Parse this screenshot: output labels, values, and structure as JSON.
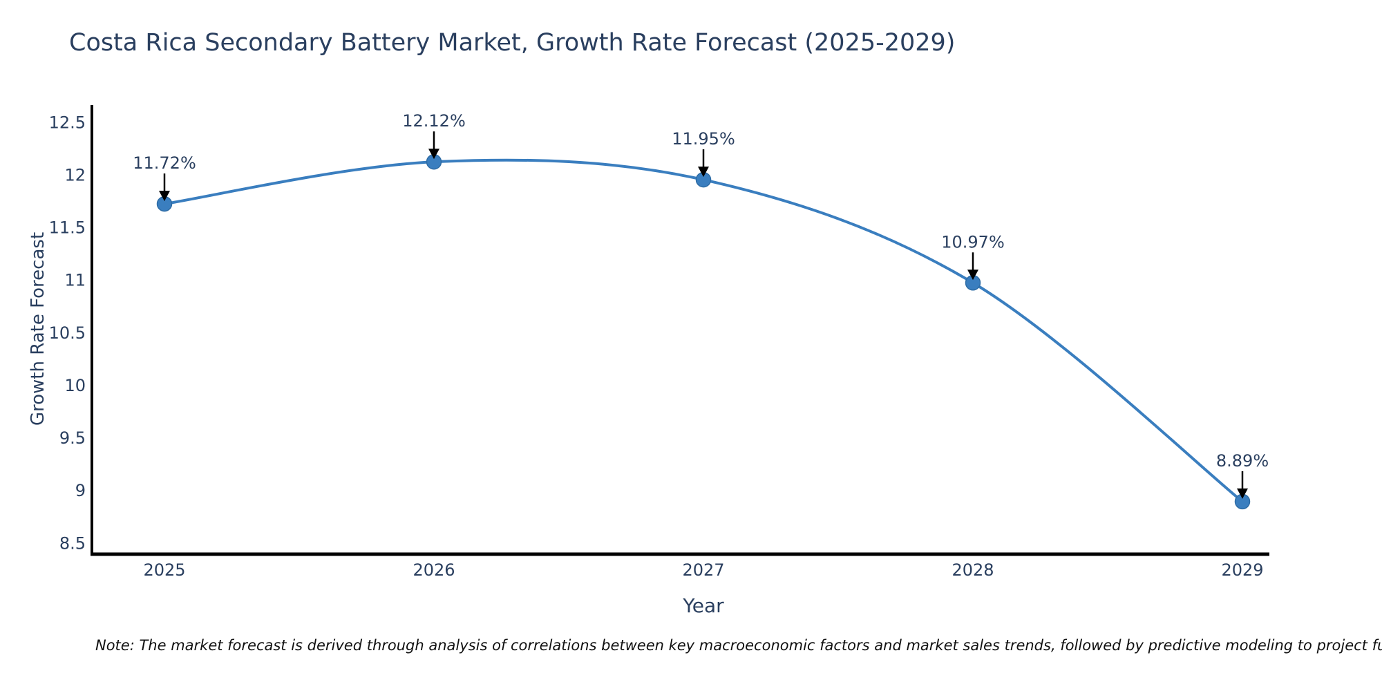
{
  "chart_data": {
    "type": "line",
    "title": "Costa Rica Secondary Battery Market, Growth Rate Forecast (2025-2029)",
    "x": [
      "2025",
      "2026",
      "2027",
      "2028",
      "2029"
    ],
    "series": [
      {
        "name": "Growth Rate Forecast",
        "values": [
          11.72,
          12.12,
          11.95,
          10.97,
          8.89
        ]
      }
    ],
    "annotations": [
      "11.72%",
      "12.12%",
      "11.95%",
      "10.97%",
      "8.89%"
    ],
    "xlabel": "Year",
    "ylabel": "Growth Rate Forecast",
    "ylim": [
      8.39,
      12.66
    ],
    "yticks": [
      "12.5",
      "12",
      "11.5",
      "11",
      "10.5",
      "10",
      "9.5",
      "9",
      "8.5"
    ],
    "ytick_values": [
      12.5,
      12,
      11.5,
      11,
      10.5,
      10,
      9.5,
      9,
      8.5
    ],
    "line_shape": "spline",
    "grid": false,
    "legend": "none",
    "colors": {
      "line": "#3a7ebf",
      "marker": "#3a7ebf",
      "marker_edge": "#2e6ca5",
      "axis_line": "#000000",
      "text": "#2a3f5f",
      "annotation_arrow": "#000000"
    }
  },
  "note": {
    "text": "Note: The market forecast is derived through analysis of correlations between key macroeconomic factors and market sales trends, followed by predictive modeling to project future sal"
  }
}
